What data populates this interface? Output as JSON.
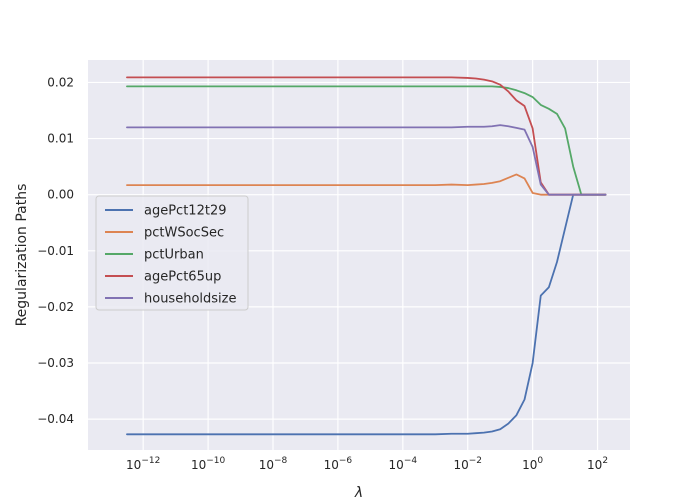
{
  "chart_data": {
    "type": "line",
    "title": "",
    "xlabel": "λ",
    "ylabel": "Regularization Paths",
    "xscale": "log",
    "xlim_log10": [
      -13.7,
      3.0
    ],
    "ylim": [
      -0.0455,
      0.024
    ],
    "grid": true,
    "legend_position": "center-left",
    "x_ticks": [
      {
        "exp": -12,
        "base": "10",
        "power": "−12"
      },
      {
        "exp": -10,
        "base": "10",
        "power": "−10"
      },
      {
        "exp": -8,
        "base": "10",
        "power": "−8"
      },
      {
        "exp": -6,
        "base": "10",
        "power": "−6"
      },
      {
        "exp": -4,
        "base": "10",
        "power": "−4"
      },
      {
        "exp": -2,
        "base": "10",
        "power": "−2"
      },
      {
        "exp": 0,
        "base": "10",
        "power": "0"
      },
      {
        "exp": 2,
        "base": "10",
        "power": "2"
      }
    ],
    "y_ticks": [
      {
        "value": 0.02,
        "label": "0.02"
      },
      {
        "value": 0.01,
        "label": "0.01"
      },
      {
        "value": 0.0,
        "label": "0.00"
      },
      {
        "value": -0.01,
        "label": "−0.01"
      },
      {
        "value": -0.02,
        "label": "−0.02"
      },
      {
        "value": -0.03,
        "label": "−0.03"
      },
      {
        "value": -0.04,
        "label": "−0.04"
      }
    ],
    "x_log10": [
      -12.5,
      -12.0,
      -11.5,
      -11.0,
      -10.5,
      -10.0,
      -9.5,
      -9.0,
      -8.5,
      -8.0,
      -7.5,
      -7.0,
      -6.5,
      -6.0,
      -5.5,
      -5.0,
      -4.5,
      -4.0,
      -3.5,
      -3.0,
      -2.5,
      -2.0,
      -1.75,
      -1.5,
      -1.25,
      -1.0,
      -0.75,
      -0.5,
      -0.25,
      0.0,
      0.25,
      0.5,
      0.75,
      1.0,
      1.25,
      1.5,
      1.75,
      2.0,
      2.25
    ],
    "series": [
      {
        "name": "agePct12t29",
        "color": "#4c72b0",
        "values": [
          -0.0427,
          -0.0427,
          -0.0427,
          -0.0427,
          -0.0427,
          -0.0427,
          -0.0427,
          -0.0427,
          -0.0427,
          -0.0427,
          -0.0427,
          -0.0427,
          -0.0427,
          -0.0427,
          -0.0427,
          -0.0427,
          -0.0427,
          -0.0427,
          -0.0427,
          -0.0427,
          -0.0426,
          -0.0426,
          -0.0425,
          -0.0424,
          -0.0422,
          -0.0418,
          -0.0408,
          -0.0393,
          -0.0365,
          -0.03,
          -0.018,
          -0.0165,
          -0.012,
          -0.006,
          0.0,
          0.0,
          0.0,
          0.0,
          0.0
        ]
      },
      {
        "name": "pctWSocSec",
        "color": "#dd8452",
        "values": [
          0.0017,
          0.0017,
          0.0017,
          0.0017,
          0.0017,
          0.0017,
          0.0017,
          0.0017,
          0.0017,
          0.0017,
          0.0017,
          0.0017,
          0.0017,
          0.0017,
          0.0017,
          0.0017,
          0.0017,
          0.0017,
          0.0017,
          0.0017,
          0.0018,
          0.0017,
          0.0018,
          0.0019,
          0.0021,
          0.0024,
          0.003,
          0.0036,
          0.0029,
          0.0003,
          0.0,
          0.0,
          0.0,
          0.0,
          0.0,
          0.0,
          0.0,
          0.0,
          0.0
        ]
      },
      {
        "name": "pctUrban",
        "color": "#55a868",
        "values": [
          0.0193,
          0.0193,
          0.0193,
          0.0193,
          0.0193,
          0.0193,
          0.0193,
          0.0193,
          0.0193,
          0.0193,
          0.0193,
          0.0193,
          0.0193,
          0.0193,
          0.0193,
          0.0193,
          0.0193,
          0.0193,
          0.0193,
          0.0193,
          0.0193,
          0.0193,
          0.0193,
          0.0193,
          0.0193,
          0.0192,
          0.019,
          0.0186,
          0.0181,
          0.0174,
          0.016,
          0.0153,
          0.0144,
          0.0118,
          0.005,
          0.0,
          0.0,
          0.0,
          0.0
        ]
      },
      {
        "name": "agePct65up",
        "color": "#c44e52",
        "values": [
          0.0209,
          0.0209,
          0.0209,
          0.0209,
          0.0209,
          0.0209,
          0.0209,
          0.0209,
          0.0209,
          0.0209,
          0.0209,
          0.0209,
          0.0209,
          0.0209,
          0.0209,
          0.0209,
          0.0209,
          0.0209,
          0.0209,
          0.0209,
          0.0209,
          0.0208,
          0.0207,
          0.0205,
          0.0202,
          0.0196,
          0.0184,
          0.0168,
          0.0158,
          0.0118,
          0.0022,
          0.0,
          0.0,
          0.0,
          0.0,
          0.0,
          0.0,
          0.0,
          0.0
        ]
      },
      {
        "name": "householdsize",
        "color": "#8172b3",
        "values": [
          0.012,
          0.012,
          0.012,
          0.012,
          0.012,
          0.012,
          0.012,
          0.012,
          0.012,
          0.012,
          0.012,
          0.012,
          0.012,
          0.012,
          0.012,
          0.012,
          0.012,
          0.012,
          0.012,
          0.012,
          0.012,
          0.0121,
          0.0121,
          0.0121,
          0.0122,
          0.0124,
          0.0122,
          0.0119,
          0.0116,
          0.0085,
          0.0018,
          0.0,
          0.0,
          0.0,
          0.0,
          0.0,
          0.0,
          0.0,
          0.0
        ]
      }
    ]
  }
}
